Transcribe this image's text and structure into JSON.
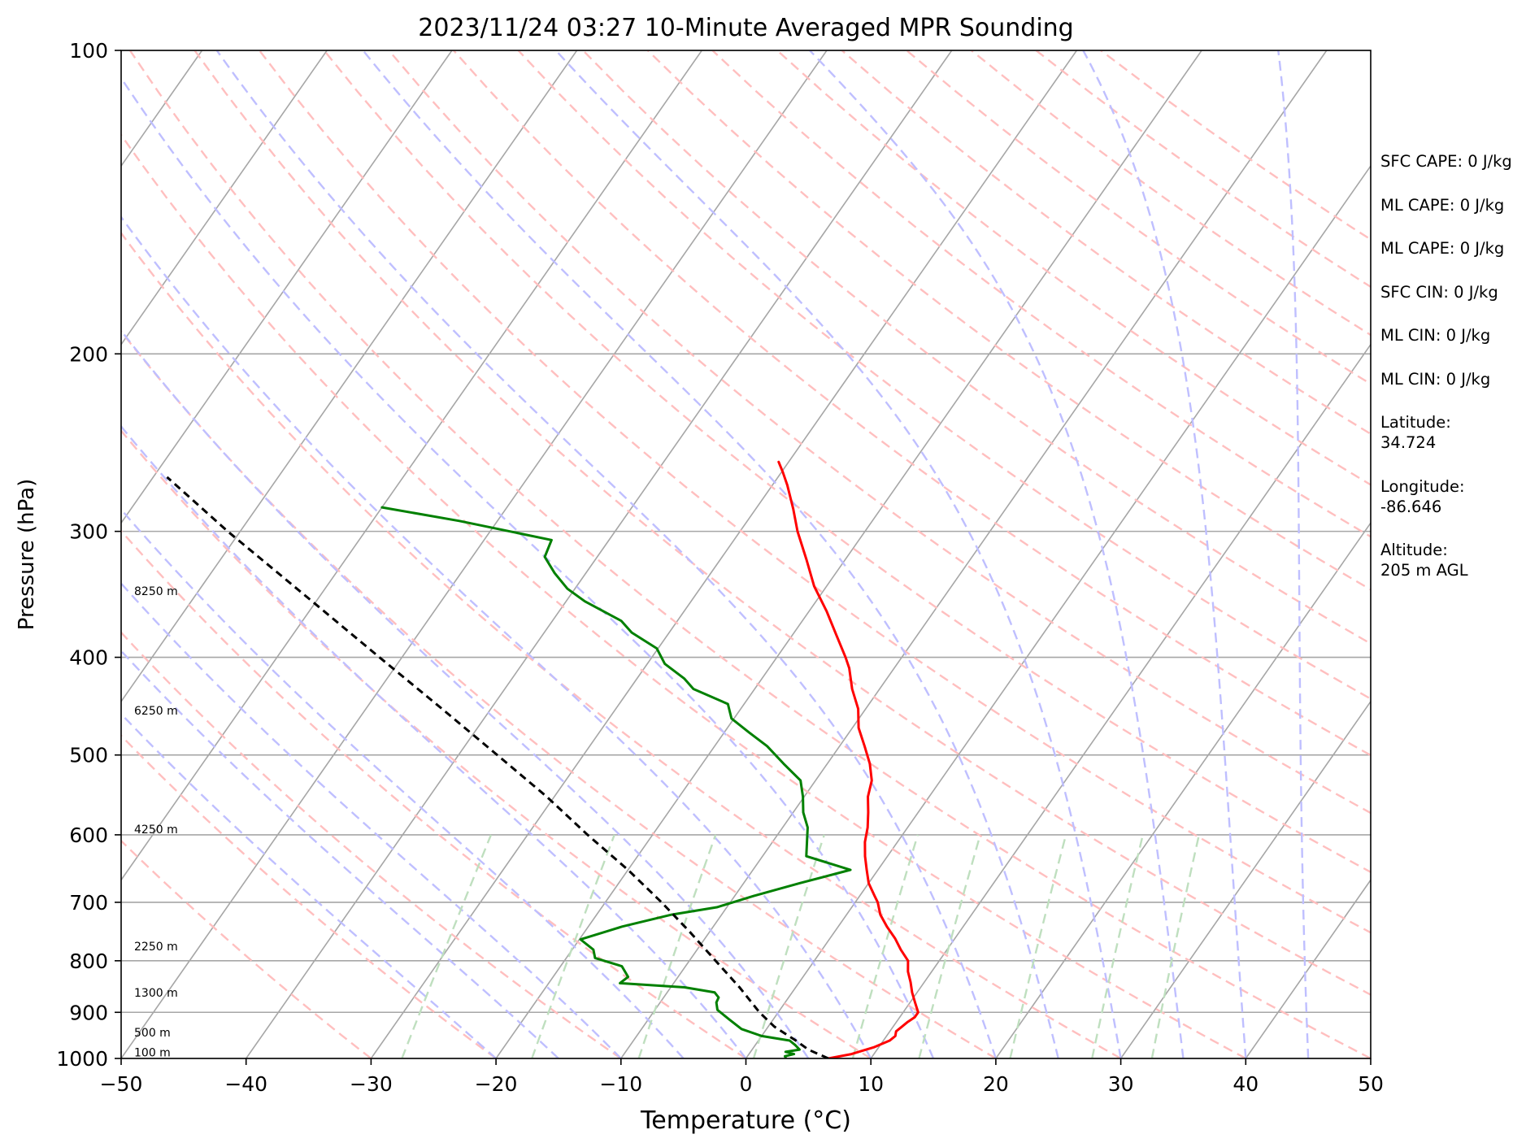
{
  "chart_data": {
    "type": "line",
    "title": "2023/11/24 03:27 10-Minute Averaged MPR Sounding",
    "xlabel": "Temperature (°C)",
    "ylabel": "Pressure (hPa)",
    "xlim": [
      -50,
      50
    ],
    "ylim": [
      1000,
      100
    ],
    "y_scale": "log",
    "skew": "skew-T log-P",
    "x_ticks": [
      -50,
      -40,
      -30,
      -20,
      -10,
      0,
      10,
      20,
      30,
      40,
      50
    ],
    "x_tick_labels": [
      "−50",
      "−40",
      "−30",
      "−20",
      "−10",
      "0",
      "10",
      "20",
      "30",
      "40",
      "50"
    ],
    "y_ticks": [
      100,
      200,
      300,
      400,
      500,
      600,
      700,
      800,
      900,
      1000
    ],
    "y_tick_labels": [
      "100",
      "200",
      "300",
      "400",
      "500",
      "600",
      "700",
      "800",
      "900",
      "1000"
    ],
    "grid": true,
    "colors": {
      "temperature": "#ff0000",
      "dewpoint": "#008000",
      "parcel": "#000000",
      "isotherms": "#a6a6a6",
      "dry_adiabats": "#ffbfbf",
      "moist_adiabats": "#bfbfff",
      "mixing_ratio": "#bfdfbf"
    },
    "height_labels": [
      {
        "text": "100 m",
        "p": 995
      },
      {
        "text": "500 m",
        "p": 951
      },
      {
        "text": "1300 m",
        "p": 868
      },
      {
        "text": "2250 m",
        "p": 781
      },
      {
        "text": "4250 m",
        "p": 598
      },
      {
        "text": "6250 m",
        "p": 456
      },
      {
        "text": "8250 m",
        "p": 347
      }
    ],
    "series": [
      {
        "kind": "temperature",
        "points": [
          [
            1000,
            6.6
          ],
          [
            990,
            8.2
          ],
          [
            975,
            9.6
          ],
          [
            960,
            10.5
          ],
          [
            950,
            10.7
          ],
          [
            940,
            10.5
          ],
          [
            930,
            10.7
          ],
          [
            920,
            10.9
          ],
          [
            910,
            11.2
          ],
          [
            900,
            11.2
          ],
          [
            880,
            10.4
          ],
          [
            860,
            9.6
          ],
          [
            840,
            8.9
          ],
          [
            820,
            8.1
          ],
          [
            800,
            7.5
          ],
          [
            780,
            6.3
          ],
          [
            760,
            5.2
          ],
          [
            740,
            3.9
          ],
          [
            720,
            2.7
          ],
          [
            700,
            1.8
          ],
          [
            690,
            1.2
          ],
          [
            670,
            0.0
          ],
          [
            650,
            -0.9
          ],
          [
            630,
            -1.8
          ],
          [
            610,
            -2.6
          ],
          [
            590,
            -3.2
          ],
          [
            570,
            -4.0
          ],
          [
            550,
            -4.9
          ],
          [
            530,
            -5.5
          ],
          [
            510,
            -6.6
          ],
          [
            490,
            -8.0
          ],
          [
            470,
            -9.5
          ],
          [
            450,
            -10.6
          ],
          [
            430,
            -12.2
          ],
          [
            410,
            -13.6
          ],
          [
            400,
            -14.5
          ],
          [
            380,
            -16.5
          ],
          [
            360,
            -18.6
          ],
          [
            340,
            -21.0
          ],
          [
            320,
            -23.1
          ],
          [
            300,
            -25.4
          ],
          [
            285,
            -27.0
          ],
          [
            270,
            -28.8
          ],
          [
            262,
            -29.9
          ],
          [
            256,
            -30.8
          ]
        ]
      },
      {
        "kind": "dewpoint",
        "points": [
          [
            1000,
            3.2
          ],
          [
            995,
            3.0
          ],
          [
            990,
            3.6
          ],
          [
            985,
            2.8
          ],
          [
            980,
            3.8
          ],
          [
            970,
            3.2
          ],
          [
            960,
            2.5
          ],
          [
            950,
            0.0
          ],
          [
            935,
            -2.0
          ],
          [
            915,
            -3.5
          ],
          [
            895,
            -5.0
          ],
          [
            880,
            -5.5
          ],
          [
            870,
            -5.6
          ],
          [
            860,
            -6.2
          ],
          [
            850,
            -8.9
          ],
          [
            842,
            -14.3
          ],
          [
            830,
            -14.0
          ],
          [
            810,
            -15.1
          ],
          [
            795,
            -17.7
          ],
          [
            780,
            -18.3
          ],
          [
            762,
            -19.9
          ],
          [
            740,
            -17.3
          ],
          [
            720,
            -14.0
          ],
          [
            708,
            -10.8
          ],
          [
            690,
            -8.5
          ],
          [
            670,
            -5.5
          ],
          [
            650,
            -2.2
          ],
          [
            630,
            -6.5
          ],
          [
            590,
            -8.0
          ],
          [
            570,
            -9.2
          ],
          [
            550,
            -10.1
          ],
          [
            530,
            -11.2
          ],
          [
            510,
            -13.5
          ],
          [
            490,
            -15.8
          ],
          [
            475,
            -18.0
          ],
          [
            460,
            -20.2
          ],
          [
            445,
            -21.3
          ],
          [
            430,
            -24.9
          ],
          [
            420,
            -26.2
          ],
          [
            406,
            -28.6
          ],
          [
            392,
            -30.1
          ],
          [
            378,
            -33.0
          ],
          [
            368,
            -34.5
          ],
          [
            352,
            -38.5
          ],
          [
            342,
            -40.6
          ],
          [
            330,
            -42.5
          ],
          [
            318,
            -44.2
          ],
          [
            306,
            -44.6
          ],
          [
            293,
            -53.0
          ],
          [
            284,
            -60.0
          ]
        ]
      },
      {
        "kind": "parcel",
        "points": [
          [
            1000,
            6.6
          ],
          [
            980,
            4.5
          ],
          [
            960,
            3.0
          ],
          [
            930,
            0.5
          ],
          [
            900,
            -1.5
          ],
          [
            850,
            -4.5
          ],
          [
            800,
            -7.9
          ],
          [
            750,
            -11.5
          ],
          [
            700,
            -15.5
          ],
          [
            650,
            -20.0
          ],
          [
            600,
            -25.2
          ],
          [
            550,
            -30.6
          ],
          [
            500,
            -36.9
          ],
          [
            450,
            -43.9
          ],
          [
            400,
            -51.8
          ],
          [
            350,
            -60.7
          ],
          [
            300,
            -71.0
          ],
          [
            265,
            -78.9
          ]
        ]
      }
    ]
  },
  "side_info": {
    "items": [
      "SFC CAPE: 0 J/kg",
      "ML CAPE: 0 J/kg",
      "ML CAPE: 0 J/kg",
      "SFC CIN: 0 J/kg",
      "ML CIN: 0 J/kg",
      "ML CIN: 0 J/kg",
      "Latitude:\n34.724",
      "Longitude:\n-86.646",
      "Altitude:\n205 m AGL"
    ]
  }
}
